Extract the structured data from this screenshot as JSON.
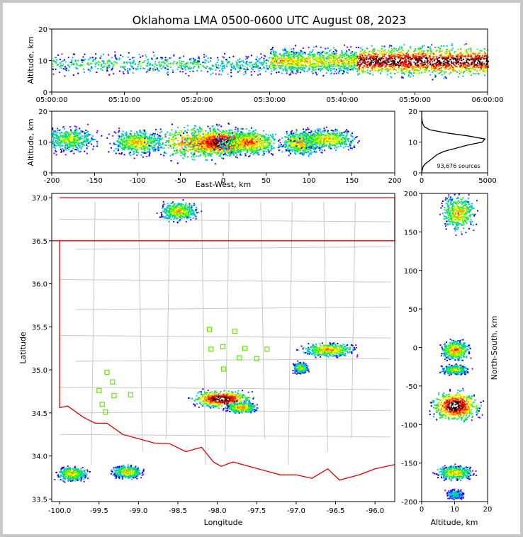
{
  "title": "Oklahoma LMA 0500-0600 UTC August 08, 2023",
  "panels": {
    "time_height": {
      "ylabel": "Altitude, km",
      "yticks": [
        "0",
        "10",
        "20"
      ],
      "xticks": [
        "05:00:00",
        "05:10:00",
        "05:20:00",
        "05:30:00",
        "05:40:00",
        "05:50:00",
        "06:00:00"
      ]
    },
    "ew_height": {
      "ylabel": "Altitude, km",
      "xlabel": "East-West, km",
      "yticks": [
        "0",
        "10",
        "20"
      ],
      "xticks": [
        "-200",
        "-150",
        "-100",
        "-50",
        "0",
        "50",
        "100",
        "150",
        "200"
      ]
    },
    "hist": {
      "xticks": [
        "0",
        "5000"
      ],
      "yticks": [
        "0",
        "10",
        "20"
      ],
      "annotation": "93,676 sources"
    },
    "plan": {
      "xlabel": "Longitude",
      "ylabel": "Latitude",
      "xticks": [
        "-100.0",
        "-99.5",
        "-99.0",
        "-98.5",
        "-98.0",
        "-97.5",
        "-97.0",
        "-96.5",
        "-96.0"
      ],
      "yticks": [
        "37.0",
        "36.5",
        "36.0",
        "35.5",
        "35.0",
        "34.5",
        "34.0",
        "33.5"
      ]
    },
    "ns_height": {
      "xlabel": "Altitude, km",
      "ylabel": "North-South, km",
      "xticks": [
        "0",
        "10",
        "20"
      ],
      "yticks": [
        "200",
        "150",
        "100",
        "50",
        "0",
        "-50",
        "-100",
        "-150",
        "-200"
      ]
    }
  },
  "chart_data": [
    {
      "type": "heatmap",
      "panel": "altitude-vs-time",
      "x_range": [
        "05:00:00",
        "06:00:00"
      ],
      "ylim": [
        0,
        20
      ],
      "clusters": [
        {
          "t_start": "05:00:00",
          "t_end": "05:30:00",
          "alt_center": 9,
          "alt_spread": 2.5,
          "intensity": 0.35
        },
        {
          "t_start": "05:30:00",
          "t_end": "05:42:00",
          "alt_center": 10,
          "alt_spread": 3,
          "intensity": 0.55
        },
        {
          "t_start": "05:42:00",
          "t_end": "06:00:00",
          "alt_center": 10,
          "alt_spread": 3.5,
          "intensity": 0.9
        }
      ]
    },
    {
      "type": "heatmap",
      "panel": "altitude-vs-east-west",
      "xlim": [
        -200,
        200
      ],
      "ylim": [
        0,
        20
      ],
      "clusters": [
        {
          "x": -180,
          "alt": 11,
          "wx": 14,
          "wa": 3,
          "intensity": 0.5
        },
        {
          "x": -100,
          "alt": 10,
          "wx": 14,
          "wa": 3,
          "intensity": 0.6
        },
        {
          "x": -25,
          "alt": 10,
          "wx": 25,
          "wa": 4,
          "intensity": 0.8
        },
        {
          "x": 0,
          "alt": 10,
          "wx": 20,
          "wa": 3,
          "intensity": 1.0
        },
        {
          "x": 30,
          "alt": 10,
          "wx": 16,
          "wa": 3,
          "intensity": 0.7
        },
        {
          "x": 90,
          "alt": 10,
          "wx": 10,
          "wa": 3,
          "intensity": 0.65
        },
        {
          "x": 120,
          "alt": 11,
          "wx": 16,
          "wa": 2.5,
          "intensity": 0.6
        }
      ]
    },
    {
      "type": "line",
      "panel": "altitude-histogram",
      "xlim": [
        0,
        5000
      ],
      "ylim": [
        0,
        20
      ],
      "points": [
        [
          0,
          0
        ],
        [
          100,
          2
        ],
        [
          300,
          3
        ],
        [
          600,
          4
        ],
        [
          900,
          5
        ],
        [
          1200,
          6
        ],
        [
          1700,
          7
        ],
        [
          2600,
          8
        ],
        [
          3500,
          9
        ],
        [
          4600,
          10
        ],
        [
          4800,
          11
        ],
        [
          3500,
          12
        ],
        [
          1800,
          13
        ],
        [
          600,
          14
        ],
        [
          200,
          15
        ],
        [
          80,
          16
        ],
        [
          30,
          17
        ],
        [
          10,
          18
        ],
        [
          0,
          20
        ]
      ]
    },
    {
      "type": "heatmap",
      "panel": "plan-view",
      "xlim": [
        -100.1,
        -95.75
      ],
      "ylim": [
        33.47,
        37.05
      ],
      "clusters": [
        {
          "lon": -99.85,
          "lat": 33.8,
          "wlon": 0.12,
          "wlat": 0.05,
          "intensity": 0.6
        },
        {
          "lon": -99.15,
          "lat": 33.82,
          "wlon": 0.12,
          "wlat": 0.05,
          "intensity": 0.6
        },
        {
          "lon": -98.5,
          "lat": 36.85,
          "wlon": 0.15,
          "wlat": 0.07,
          "intensity": 0.6
        },
        {
          "lon": -97.95,
          "lat": 34.67,
          "wlon": 0.22,
          "wlat": 0.06,
          "intensity": 1.0
        },
        {
          "lon": -97.7,
          "lat": 34.57,
          "wlon": 0.12,
          "wlat": 0.04,
          "intensity": 0.7
        },
        {
          "lon": -96.6,
          "lat": 35.24,
          "wlon": 0.2,
          "wlat": 0.05,
          "intensity": 0.65
        },
        {
          "lon": -96.95,
          "lat": 35.03,
          "wlon": 0.06,
          "wlat": 0.04,
          "intensity": 0.55
        }
      ],
      "stations": [
        [
          -98.1,
          35.47
        ],
        [
          -97.78,
          35.45
        ],
        [
          -97.93,
          35.27
        ],
        [
          -98.08,
          35.24
        ],
        [
          -97.65,
          35.25
        ],
        [
          -97.37,
          35.24
        ],
        [
          -97.72,
          35.14
        ],
        [
          -97.5,
          35.13
        ],
        [
          -97.92,
          35.01
        ],
        [
          -99.4,
          34.97
        ],
        [
          -99.33,
          34.86
        ],
        [
          -99.5,
          34.76
        ],
        [
          -99.31,
          34.7
        ],
        [
          -99.1,
          34.71
        ],
        [
          -99.46,
          34.6
        ],
        [
          -99.42,
          34.51
        ]
      ],
      "state_border": [
        [
          -100.0,
          37.0
        ],
        [
          -94.6,
          37.0
        ],
        [
          -94.6,
          36.5
        ],
        [
          -100.1,
          36.5
        ],
        [
          -100.0,
          36.5
        ],
        [
          -100.0,
          34.56
        ],
        [
          -99.9,
          34.58
        ],
        [
          -99.7,
          34.45
        ],
        [
          -99.55,
          34.38
        ],
        [
          -99.4,
          34.38
        ],
        [
          -99.2,
          34.25
        ],
        [
          -99.0,
          34.2
        ],
        [
          -98.8,
          34.15
        ],
        [
          -98.6,
          34.14
        ],
        [
          -98.4,
          34.05
        ],
        [
          -98.2,
          34.1
        ],
        [
          -98.05,
          33.93
        ],
        [
          -97.95,
          33.88
        ],
        [
          -97.8,
          33.93
        ],
        [
          -97.6,
          33.88
        ],
        [
          -97.4,
          33.83
        ],
        [
          -97.2,
          33.78
        ],
        [
          -97.0,
          33.78
        ],
        [
          -96.8,
          33.74
        ],
        [
          -96.6,
          33.85
        ],
        [
          -96.45,
          33.72
        ],
        [
          -96.2,
          33.78
        ],
        [
          -96.0,
          33.85
        ],
        [
          -95.75,
          33.9
        ]
      ]
    },
    {
      "type": "heatmap",
      "panel": "north-south-vs-altitude",
      "xlim": [
        0,
        20
      ],
      "ylim": [
        -200,
        200
      ],
      "clusters": [
        {
          "alt": 11,
          "ns": 175,
          "wa": 4,
          "wn": 15,
          "intensity": 0.6
        },
        {
          "alt": 10,
          "ns": -3,
          "wa": 3,
          "wn": 8,
          "intensity": 0.7
        },
        {
          "alt": 10,
          "ns": -28,
          "wa": 3,
          "wn": 4,
          "intensity": 0.55
        },
        {
          "alt": 10,
          "ns": -75,
          "wa": 5,
          "wn": 12,
          "intensity": 1.0
        },
        {
          "alt": 10,
          "ns": -162,
          "wa": 4,
          "wn": 6,
          "intensity": 0.6
        },
        {
          "alt": 10,
          "ns": -190,
          "wa": 2,
          "wn": 4,
          "intensity": 0.35
        }
      ]
    }
  ]
}
